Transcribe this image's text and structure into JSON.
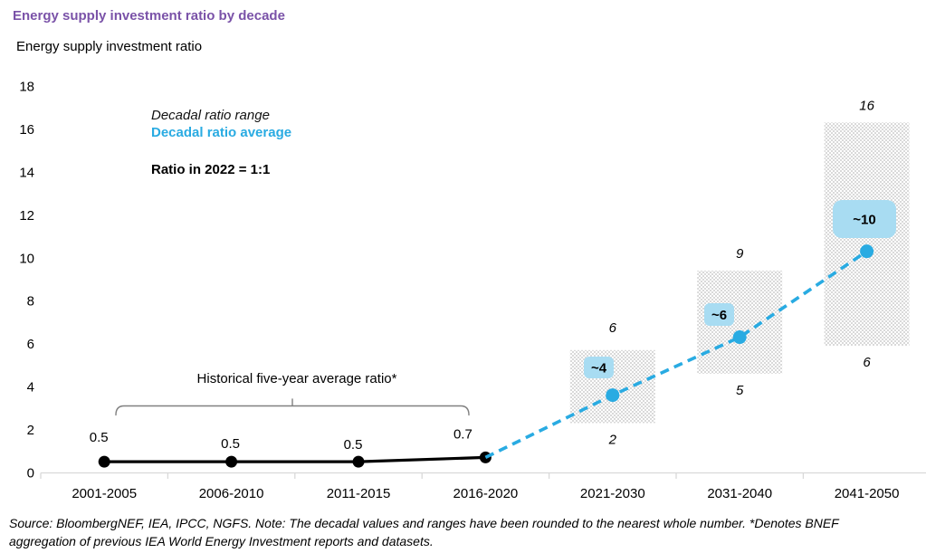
{
  "header": {
    "title": "Energy supply investment ratio by decade",
    "axis_label": "Energy supply investment ratio"
  },
  "legend": {
    "range": "Decadal ratio range",
    "average": "Decadal ratio average",
    "ratio_note": "Ratio in 2022 = 1:1"
  },
  "annotations": {
    "historical": "Historical five-year average ratio*"
  },
  "footer": {
    "source_line1": "Source: BloombergNEF, IEA, IPCC, NGFS. Note: The decadal values and ranges have been rounded to the nearest whole number. *Denotes BNEF",
    "source_line2": "aggregation of previous IEA World Energy Investment reports and datasets."
  },
  "colors": {
    "title_purple": "#7A52A8",
    "blue": "#29ABE2",
    "light_blue": "#A8DCF2",
    "hatch_gray": "#D9D9D9",
    "axis_gray": "#D9D9D9",
    "brace_gray": "#808080",
    "black": "#000000"
  },
  "chart_data": {
    "type": "line",
    "title": "Energy supply investment ratio by decade",
    "ylabel": "Energy supply investment ratio",
    "xlabel": "",
    "ylim": [
      0,
      18
    ],
    "y_ticks": [
      0,
      2,
      4,
      6,
      8,
      10,
      12,
      14,
      16,
      18
    ],
    "grid": false,
    "legend_position": "upper-left-inside",
    "categories": [
      "2001-2005",
      "2006-2010",
      "2011-2015",
      "2016-2020",
      "2021-2030",
      "2031-2040",
      "2041-2050"
    ],
    "series": [
      {
        "name": "Historical five-year average ratio*",
        "style": "solid-line-with-markers",
        "color": "#000000",
        "category_indexes": [
          0,
          1,
          2,
          3
        ],
        "values": [
          0.5,
          0.5,
          0.5,
          0.7
        ],
        "point_labels": [
          "0.5",
          "0.5",
          "0.5",
          "0.7"
        ]
      },
      {
        "name": "Decadal ratio average",
        "style": "dashed-line-with-markers",
        "color": "#29ABE2",
        "category_indexes": [
          4,
          5,
          6
        ],
        "values": [
          3.6,
          6.3,
          10.3
        ],
        "point_labels": [
          "~4",
          "~6",
          "~10"
        ],
        "connects_from_index": 3
      },
      {
        "name": "Decadal ratio range",
        "style": "hatched-range-bars",
        "color": "#D9D9D9",
        "category_indexes": [
          4,
          5,
          6
        ],
        "low_values": [
          2.3,
          4.6,
          5.9
        ],
        "high_values": [
          5.7,
          9.4,
          16.3
        ],
        "low_labels": [
          "2",
          "5",
          "6"
        ],
        "high_labels": [
          "6",
          "9",
          "16"
        ]
      }
    ]
  }
}
